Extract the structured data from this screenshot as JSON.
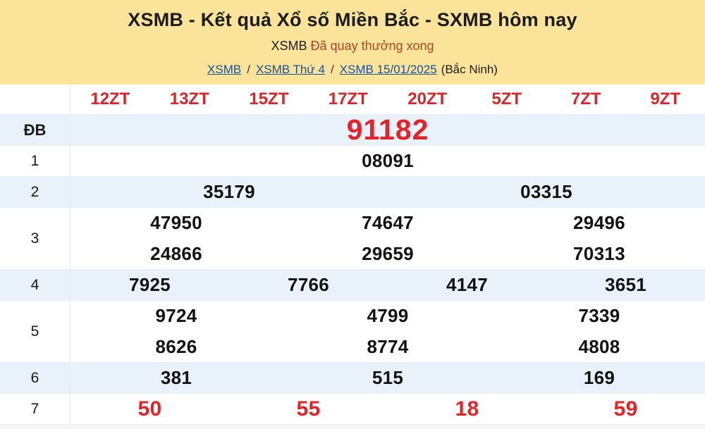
{
  "colors": {
    "banner_bg": "#FBE499",
    "accent_red": "#D6262C",
    "value_red": "#E2232A",
    "status_red": "#B0432B",
    "link_blue": "#17519B",
    "shaded_row_bg": "#E9F2FA",
    "text_dark": "#1B1B1B"
  },
  "header": {
    "title": "XSMB - Kết quả Xổ số Miền Bắc - SXMB hôm nay",
    "status_prefix": "XSMB",
    "status_text": "Đã quay thưởng xong",
    "breadcrumb_links": [
      "XSMB",
      "XSMB Thứ 4",
      "XSMB 15/01/2025"
    ],
    "breadcrumb_separator": "/",
    "breadcrumb_suffix": "(Bắc Ninh)"
  },
  "table": {
    "column_headers": [
      "12ZT",
      "13ZT",
      "15ZT",
      "17ZT",
      "20ZT",
      "5ZT",
      "7ZT",
      "9ZT"
    ],
    "rows": [
      {
        "label": "ĐB",
        "per_row": 1,
        "style": "special",
        "shaded": true,
        "values": [
          "91182"
        ]
      },
      {
        "label": "1",
        "per_row": 1,
        "style": "normal",
        "shaded": false,
        "values": [
          "08091"
        ]
      },
      {
        "label": "2",
        "per_row": 2,
        "style": "normal",
        "shaded": true,
        "values": [
          "35179",
          "03315"
        ]
      },
      {
        "label": "3",
        "per_row": 3,
        "style": "normal",
        "shaded": false,
        "values": [
          "47950",
          "74647",
          "29496",
          "24866",
          "29659",
          "70313"
        ]
      },
      {
        "label": "4",
        "per_row": 4,
        "style": "normal",
        "shaded": true,
        "values": [
          "7925",
          "7766",
          "4147",
          "3651"
        ]
      },
      {
        "label": "5",
        "per_row": 3,
        "style": "normal",
        "shaded": false,
        "values": [
          "9724",
          "4799",
          "7339",
          "8626",
          "8774",
          "4808"
        ]
      },
      {
        "label": "6",
        "per_row": 3,
        "style": "normal",
        "shaded": true,
        "values": [
          "381",
          "515",
          "169"
        ]
      },
      {
        "label": "7",
        "per_row": 4,
        "style": "red",
        "shaded": false,
        "values": [
          "50",
          "55",
          "18",
          "59"
        ]
      }
    ]
  }
}
